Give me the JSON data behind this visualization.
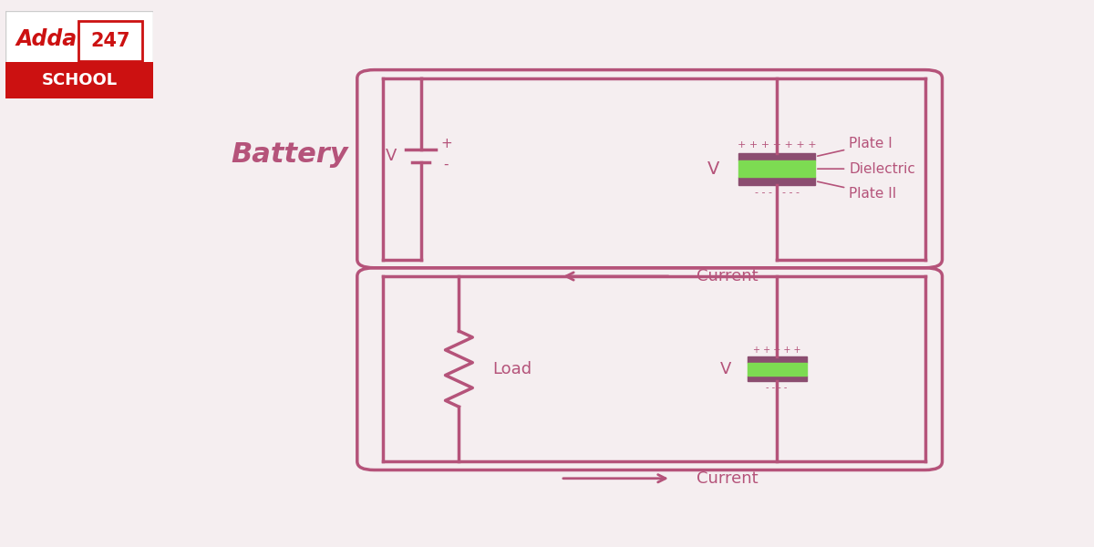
{
  "bg_color": "#f5eef0",
  "circuit_color": "#b5537a",
  "green_color": "#7ddb52",
  "plate_color": "#8b4d70",
  "text_color": "#b5537a",
  "battery_label": "Battery",
  "current_label": "Current",
  "load_label": "Load",
  "plate1_label": "Plate I",
  "dielectric_label": "Dielectric",
  "plate2_label": "Plate II",
  "logo_red": "#cc1111"
}
